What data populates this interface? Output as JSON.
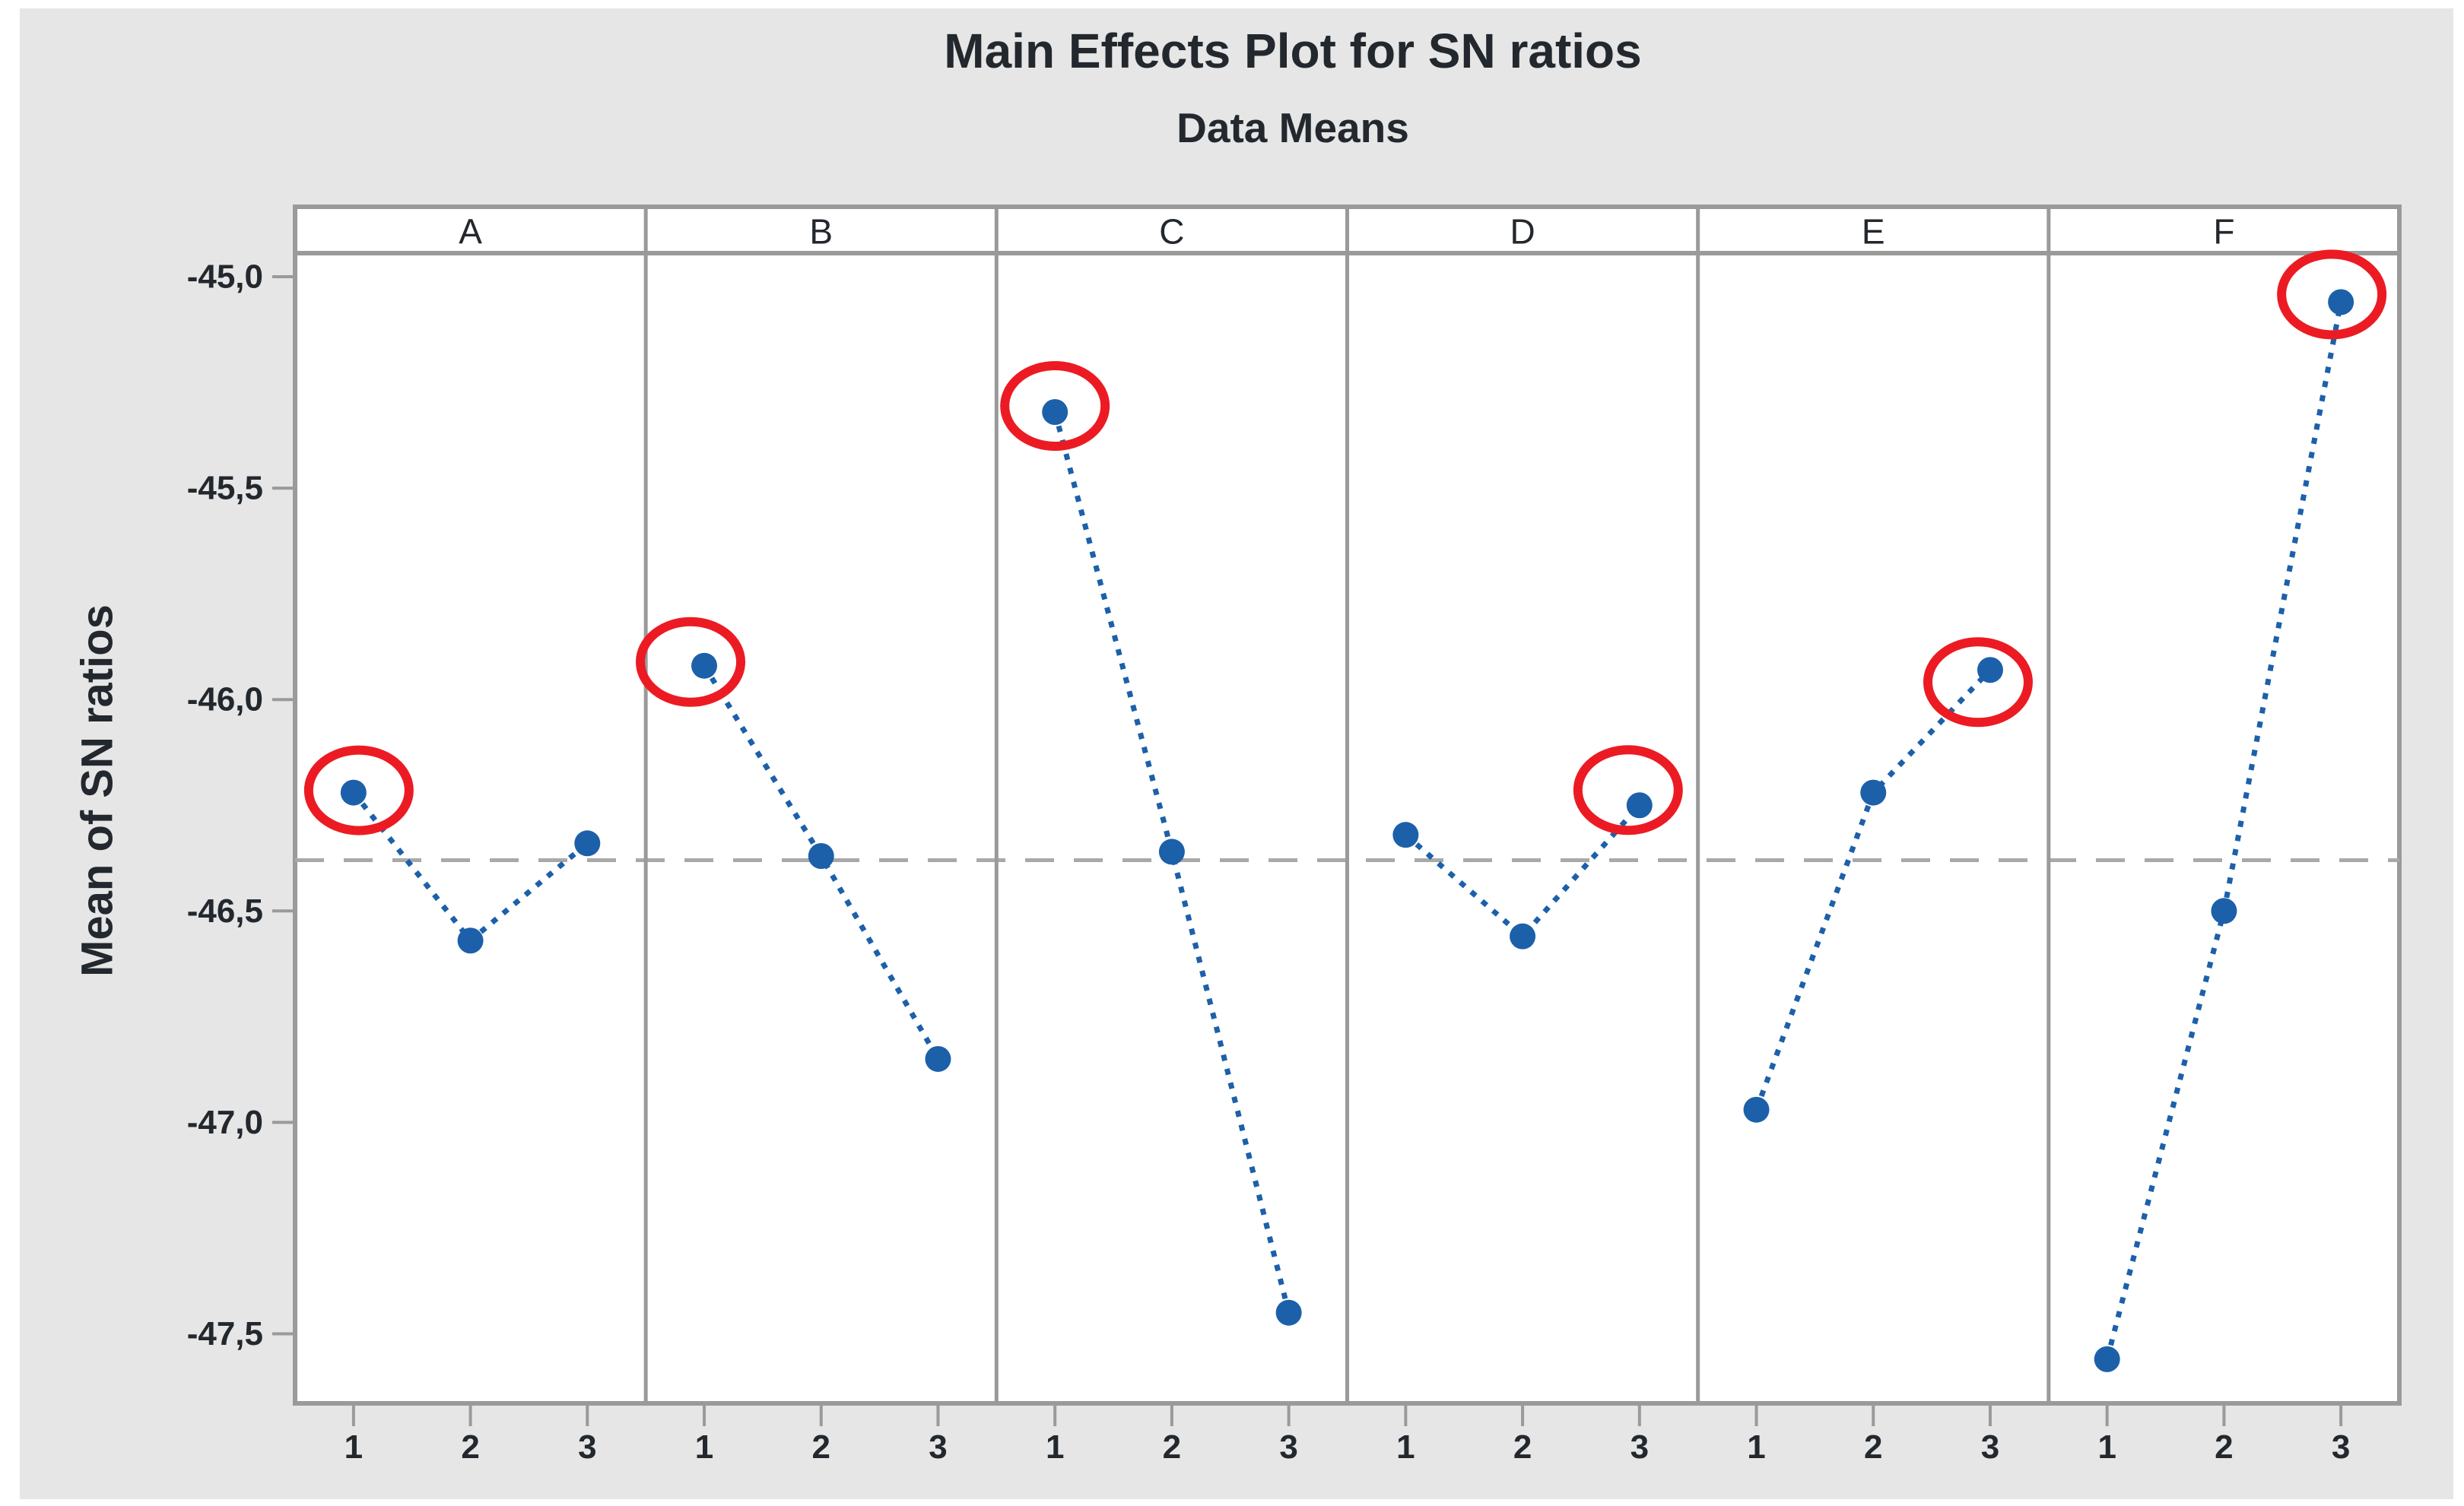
{
  "chart_data": {
    "type": "line",
    "title": "Main Effects Plot for SN ratios",
    "subtitle": "Data Means",
    "ylabel": "Mean of SN ratios",
    "xlabel": "",
    "legend": null,
    "grid": false,
    "x_tick_labels": [
      "1",
      "2",
      "3"
    ],
    "y_tick_labels": [
      "-45,0",
      "-45,5",
      "-46,0",
      "-46,5",
      "-47,0",
      "-47,5"
    ],
    "y_tick_values": [
      -45.0,
      -45.5,
      -46.0,
      -46.5,
      -47.0,
      -47.5
    ],
    "ylim": [
      -47.67,
      -44.94
    ],
    "categories": [
      1,
      2,
      3
    ],
    "panels": [
      {
        "factor": "A",
        "values": [
          -46.22,
          -46.57,
          -46.34
        ],
        "circled_level": 1
      },
      {
        "factor": "B",
        "values": [
          -45.92,
          -46.37,
          -46.85
        ],
        "circled_level": 1
      },
      {
        "factor": "C",
        "values": [
          -45.32,
          -46.36,
          -47.45
        ],
        "circled_level": 1
      },
      {
        "factor": "D",
        "values": [
          -46.32,
          -46.56,
          -46.25
        ],
        "circled_level": 3
      },
      {
        "factor": "E",
        "values": [
          -46.97,
          -46.22,
          -45.93
        ],
        "circled_level": 3
      },
      {
        "factor": "F",
        "values": [
          -47.56,
          -46.5,
          -45.06
        ],
        "circled_level": 3
      }
    ],
    "mean_line": {
      "value": -46.38,
      "style": "dashed"
    },
    "annotations": "red ellipses mark the best (highest SN ratio) level of each factor",
    "colors": {
      "series_blue": "#1C60AA",
      "highlight_red": "#EC1B23",
      "frame_gray": "#9a9a9a",
      "dash_gray": "#a9a9a9",
      "text": "#23282e",
      "plot_background": "#ffffff",
      "canvas_background": "#e5e6e5"
    }
  }
}
